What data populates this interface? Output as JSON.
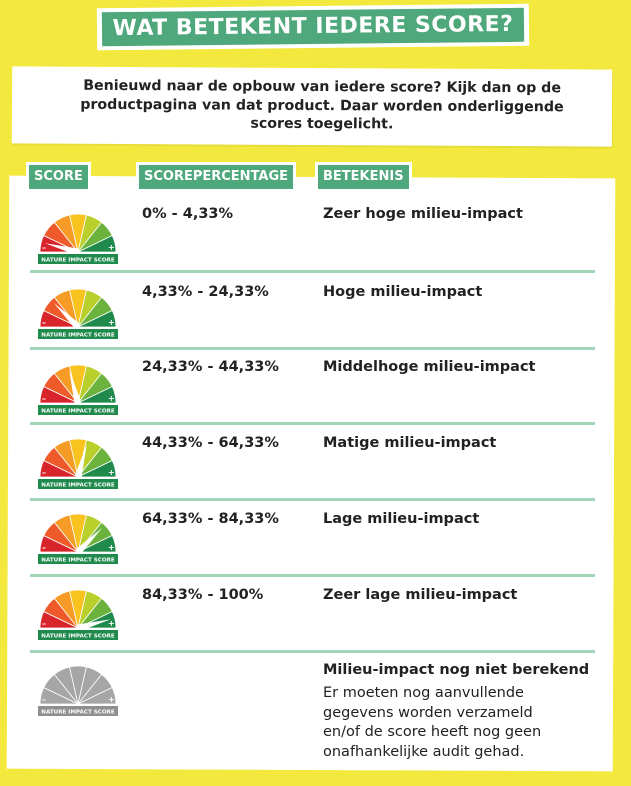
{
  "title": "WAT BETEKENT IEDERE SCORE?",
  "intro": "Benieuwd naar de opbouw van iedere score? Kijk dan op de productpagina van dat product. Daar worden onderliggende scores toegelicht.",
  "headers": {
    "score": "SCORE",
    "percentage": "SCOREPERCENTAGE",
    "meaning": "BETEKENIS"
  },
  "gauge_label": "NATURE IMPACT SCORE",
  "colors": {
    "brand_green": "#4fa87b",
    "divider": "#a3d6b9",
    "background": "#f3e93e",
    "gauge_segments": [
      "#d8242b",
      "#ee5a2a",
      "#f59b26",
      "#f8c21f",
      "#b9cf2b",
      "#6cb33e",
      "#1f8a4c"
    ],
    "gauge_grey": "#a6a6a6"
  },
  "rows": [
    {
      "range": "0% - 4,33%",
      "meaning": "Zeer hoge milieu-impact",
      "level": 0
    },
    {
      "range": "4,33% - 24,33%",
      "meaning": "Hoge milieu-impact",
      "level": 1
    },
    {
      "range": "24,33% - 44,33%",
      "meaning": "Middelhoge milieu-impact",
      "level": 2
    },
    {
      "range": "44,33% - 64,33%",
      "meaning": "Matige milieu-impact",
      "level": 3
    },
    {
      "range": "64,33% - 84,33%",
      "meaning": "Lage milieu-impact",
      "level": 4
    },
    {
      "range": "84,33% - 100%",
      "meaning": "Zeer lage milieu-impact",
      "level": 5
    },
    {
      "range": "",
      "meaning": "Milieu-impact nog niet berekend",
      "description": "Er moeten nog aanvullende gegevens worden verzameld en/of de score heeft nog geen onafhankelijke audit gehad.",
      "level": null
    }
  ]
}
